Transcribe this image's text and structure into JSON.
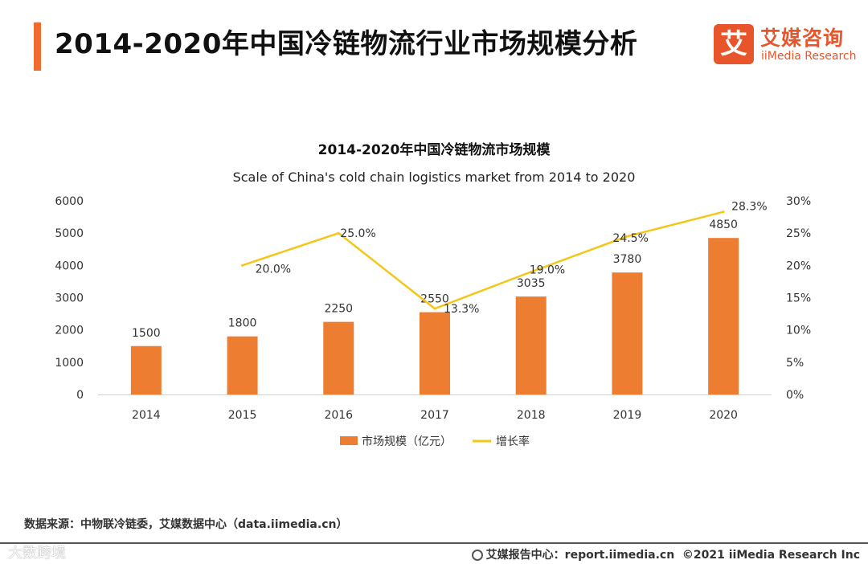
{
  "header": {
    "title": "2014-2020年中国冷链物流行业市场规模分析",
    "logo_mark": "艾",
    "logo_cn": "艾媒咨询",
    "logo_en": "iiMedia Research"
  },
  "chart_data": {
    "type": "bar+line",
    "title": "2014-2020年中国冷链物流市场规模",
    "subtitle": "Scale of China's cold chain logistics market from 2014 to 2020",
    "categories": [
      "2014",
      "2015",
      "2016",
      "2017",
      "2018",
      "2019",
      "2020"
    ],
    "series": [
      {
        "name": "市场规模（亿元）",
        "type": "bar",
        "axis": "left",
        "color": "#ed7d31",
        "values": [
          1500,
          1800,
          2250,
          2550,
          3035,
          3780,
          4850
        ],
        "labels": [
          "1500",
          "1800",
          "2250",
          "2550",
          "3035",
          "3780",
          "4850"
        ]
      },
      {
        "name": "增长率",
        "type": "line",
        "axis": "right",
        "color": "#f5c518",
        "values": [
          null,
          20.0,
          25.0,
          13.3,
          19.0,
          24.5,
          28.3
        ],
        "labels": [
          "",
          "20.0%",
          "25.0%",
          "13.3%",
          "19.0%",
          "24.5%",
          "28.3%"
        ]
      }
    ],
    "y_left": {
      "min": 0,
      "max": 6000,
      "ticks": [
        "0",
        "1000",
        "2000",
        "3000",
        "4000",
        "5000",
        "6000"
      ]
    },
    "y_right": {
      "min": 0,
      "max": 30,
      "ticks": [
        "0%",
        "5%",
        "10%",
        "15%",
        "20%",
        "25%",
        "30%"
      ]
    },
    "grid": false,
    "legend_position": "bottom-center"
  },
  "footer": {
    "source": "数据来源：中物联冷链委，艾媒数据中心（data.iimedia.cn）",
    "watermark": "大数跨境",
    "report_center": "艾媒报告中心：report.iimedia.cn",
    "copyright": "©2021  iiMedia Research  Inc"
  }
}
